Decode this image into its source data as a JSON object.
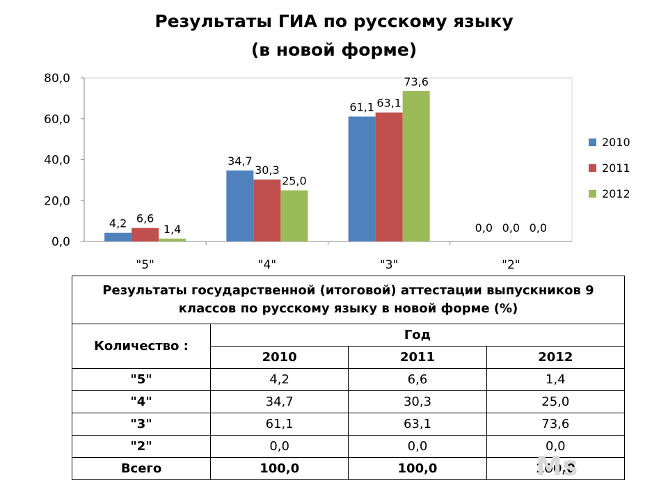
{
  "title": {
    "line1": "Результаты ГИА по русскому языку",
    "line2": "(в новой форме)"
  },
  "chart_data": {
    "type": "bar",
    "categories": [
      "\"5\"",
      "\"4\"",
      "\"3\"",
      "\"2\""
    ],
    "series": [
      {
        "name": "2010",
        "color": "#4f81bd",
        "values": [
          4.2,
          34.7,
          61.1,
          0.0
        ],
        "labels": [
          "4,2",
          "34,7",
          "61,1",
          "0,0"
        ]
      },
      {
        "name": "2011",
        "color": "#c0504d",
        "values": [
          6.6,
          30.3,
          63.1,
          0.0
        ],
        "labels": [
          "6,6",
          "30,3",
          "63,1",
          "0,0"
        ]
      },
      {
        "name": "2012",
        "color": "#9bbb59",
        "values": [
          1.4,
          25.0,
          73.6,
          0.0
        ],
        "labels": [
          "1,4",
          "25,0",
          "73,6",
          "0,0"
        ]
      }
    ],
    "ylim": [
      0,
      80
    ],
    "yticks": [
      0,
      20,
      40,
      60,
      80
    ],
    "ytick_labels": [
      "0,0",
      "20,0",
      "40,0",
      "60,0",
      "80,0"
    ],
    "legend_position": "right",
    "grid": false
  },
  "table": {
    "caption": "Результаты государственной (итоговой) аттестации выпускников 9 классов по русскому языку в новой форме (%)",
    "row_header": "Количество :",
    "group_header": "Год",
    "years": [
      "2010",
      "2011",
      "2012"
    ],
    "rows": [
      {
        "label": "\"5\"",
        "values": [
          "4,2",
          "6,6",
          "1,4"
        ]
      },
      {
        "label": "\"4\"",
        "values": [
          "34,7",
          "30,3",
          "25,0"
        ]
      },
      {
        "label": "\"3\"",
        "values": [
          "61,1",
          "63,1",
          "73,6"
        ]
      },
      {
        "label": "\"2\"",
        "values": [
          "0,0",
          "0,0",
          "0,0"
        ]
      }
    ],
    "total": {
      "label": "Всего",
      "values": [
        "100,0",
        "100,0",
        "100,0"
      ]
    }
  },
  "watermark": "Ms"
}
